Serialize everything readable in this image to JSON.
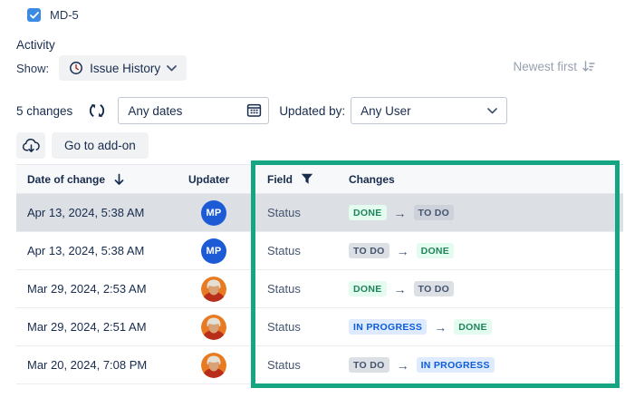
{
  "issue_header": {
    "key": "MD-5",
    "checkbox_checked": true
  },
  "activity": {
    "title": "Activity",
    "show_label": "Show:",
    "show_selected": "Issue History",
    "sort_order": "Newest first"
  },
  "filter_bar": {
    "changes_count": "5 changes",
    "date_filter_value": "Any dates",
    "updated_by_label": "Updated by:",
    "user_filter_value": "Any User"
  },
  "toolbar": {
    "go_to_addon_label": "Go to add-on"
  },
  "history_table": {
    "columns": {
      "date": "Date of change",
      "updater": "Updater",
      "field": "Field",
      "changes": "Changes"
    },
    "rows": [
      {
        "date": "Apr 13, 2024, 5:38 AM",
        "avatar_type": "initials",
        "updater_initials": "MP",
        "field": "Status",
        "from_status": "DONE",
        "to_status": "TO DO",
        "selected": true
      },
      {
        "date": "Apr 13, 2024, 5:38 AM",
        "avatar_type": "initials",
        "updater_initials": "MP",
        "field": "Status",
        "from_status": "TO DO",
        "to_status": "DONE",
        "selected": false
      },
      {
        "date": "Mar 29, 2024, 2:53 AM",
        "avatar_type": "photo",
        "updater_initials": "",
        "field": "Status",
        "from_status": "DONE",
        "to_status": "TO DO",
        "selected": false
      },
      {
        "date": "Mar 29, 2024, 2:51 AM",
        "avatar_type": "photo",
        "updater_initials": "",
        "field": "Status",
        "from_status": "IN PROGRESS",
        "to_status": "DONE",
        "selected": false
      },
      {
        "date": "Mar 20, 2024, 7:08 PM",
        "avatar_type": "photo",
        "updater_initials": "",
        "field": "Status",
        "from_status": "TO DO",
        "to_status": "IN PROGRESS",
        "selected": false
      }
    ]
  },
  "status_colors": {
    "done_bg": "#E3FCEF",
    "done_text": "#1F845A",
    "todo_bg": "#DCDFE4",
    "todo_text": "#44546F",
    "in_progress_bg": "#DEEBFF",
    "in_progress_text": "#0C5BD8",
    "annotation_border": "#15A583",
    "avatar_blue": "#1D5BD6"
  }
}
